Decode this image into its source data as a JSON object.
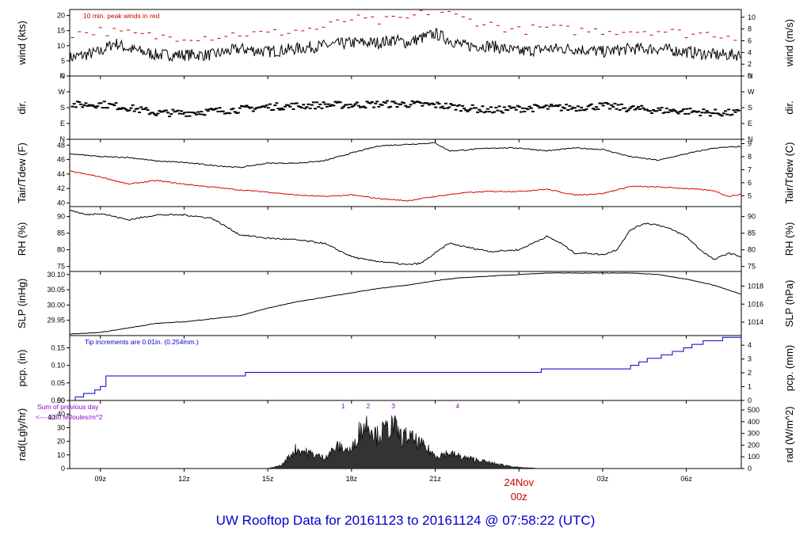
{
  "title": "UW Rooftop Data for 20161123  to  20161124 @ 07:58:22  (UTC)",
  "x_axis": {
    "ticks": [
      "09z",
      "12z",
      "15z",
      "18z",
      "21z",
      "03z",
      "06z"
    ],
    "tick_hours": [
      9,
      12,
      15,
      18,
      21,
      27,
      30
    ],
    "date_label": "24Nov",
    "date_sublabel": "00z",
    "date_hour": 24,
    "range_hours": [
      7.9,
      31.97
    ],
    "date_color": "#cc0000"
  },
  "chart_data": [
    {
      "type": "line",
      "id": "wind",
      "ylabel": "wind (kts)",
      "y2label": "wind (m/s)",
      "ylim": [
        0,
        22
      ],
      "yticks": [
        0,
        5,
        10,
        15,
        20
      ],
      "y2ticks": [
        "0",
        "2",
        "4",
        "6",
        "8",
        "10"
      ],
      "y2ticks_values": [
        0,
        3.89,
        7.78,
        11.66,
        15.55,
        19.44
      ],
      "annotation": "10 min. peak winds in red",
      "annotation_color": "#cc0000",
      "series": [
        {
          "color": "#000000",
          "x": [
            7.9,
            9,
            9.5,
            10,
            11,
            12,
            13,
            14,
            15,
            16,
            17,
            18,
            19,
            19.5,
            20,
            21,
            21.5,
            22,
            23,
            24,
            25,
            26,
            27,
            28,
            29,
            30,
            31,
            31.97
          ],
          "y": [
            6,
            8,
            11,
            9,
            7,
            7,
            7,
            9,
            8,
            9,
            10,
            11,
            11,
            12,
            11,
            14,
            12,
            10,
            10,
            8,
            9,
            9,
            8,
            9,
            9,
            8,
            7,
            7
          ]
        },
        {
          "color": "#cc0000",
          "style": "dash",
          "x": [
            8,
            9,
            10,
            11,
            12,
            13,
            14,
            15,
            16,
            17,
            18,
            19,
            20,
            21,
            22,
            23,
            24,
            25,
            26,
            27,
            28,
            29,
            30,
            31,
            31.9
          ],
          "y": [
            14,
            15,
            14,
            13,
            13,
            13,
            14,
            14,
            15,
            16,
            19,
            18,
            19,
            22,
            19,
            17,
            15,
            16,
            15,
            15,
            15,
            15,
            14,
            14,
            13
          ]
        }
      ]
    },
    {
      "type": "scatter",
      "id": "dir",
      "ylabel": "dir.",
      "y2label": "dir.",
      "yticks": [
        "N",
        "W",
        "S",
        "E",
        "N"
      ],
      "ytick_values": [
        360,
        270,
        180,
        90,
        0
      ],
      "y2ticks": [
        "N",
        "W",
        "S",
        "E",
        "N"
      ],
      "ylim": [
        0,
        360
      ],
      "series": [
        {
          "color": "#000000",
          "x": [
            8,
            9,
            10,
            11,
            12,
            13,
            14,
            15,
            16,
            17,
            18,
            19,
            20,
            21,
            22,
            23,
            24,
            25,
            26,
            27,
            28,
            29,
            30,
            31,
            31.9
          ],
          "y": [
            195,
            200,
            180,
            150,
            150,
            160,
            170,
            185,
            190,
            195,
            195,
            200,
            200,
            195,
            180,
            165,
            175,
            180,
            180,
            190,
            175,
            165,
            160,
            150,
            150
          ]
        }
      ]
    },
    {
      "type": "line",
      "id": "temp",
      "ylabel": "Tair/Tdew (F)",
      "y2label": "Tair/Tdew (C)",
      "ylim": [
        39.5,
        48.8
      ],
      "yticks": [
        40,
        42,
        44,
        46,
        48
      ],
      "y2ticks": [
        "5",
        "6",
        "7",
        "8",
        "9"
      ],
      "y2ticks_values": [
        41,
        42.8,
        44.6,
        46.4,
        48.2
      ],
      "series": [
        {
          "name": "Tair",
          "color": "#000000",
          "x": [
            7.9,
            9,
            10,
            11,
            12,
            13,
            14,
            15,
            16,
            17,
            18,
            19,
            20,
            21,
            21.5,
            22,
            23,
            24,
            25,
            26,
            27,
            28,
            29,
            30,
            31,
            31.97
          ],
          "y": [
            46.8,
            46.4,
            46.3,
            45.8,
            45.6,
            45.2,
            44.9,
            45.5,
            45.5,
            45.8,
            46.9,
            47.9,
            48.1,
            48.3,
            47.2,
            47.3,
            47.6,
            47.6,
            47.2,
            47.6,
            47.4,
            46.4,
            45.9,
            46.8,
            47.6,
            47.8
          ]
        },
        {
          "name": "Tdew",
          "color": "#dd0000",
          "x": [
            7.9,
            9,
            10,
            11,
            12,
            13,
            14,
            15,
            16,
            17,
            18,
            19,
            20,
            21,
            22,
            23,
            24,
            25,
            26,
            27,
            28,
            29,
            30,
            31,
            31.5,
            31.97
          ],
          "y": [
            44.4,
            43.6,
            42.6,
            43.1,
            42.6,
            42.2,
            41.8,
            41.5,
            41.1,
            40.9,
            41.1,
            40.6,
            40.3,
            40.9,
            41.4,
            41.6,
            41.6,
            41.9,
            41.1,
            41.3,
            42.3,
            42.2,
            42.0,
            41.7,
            40.9,
            41.2
          ]
        }
      ]
    },
    {
      "type": "line",
      "id": "rh",
      "ylabel": "RH (%)",
      "y2label": "RH (%)",
      "ylim": [
        73.5,
        93
      ],
      "yticks": [
        75,
        80,
        85,
        90
      ],
      "y2ticks": [
        "75",
        "80",
        "85",
        "90"
      ],
      "y2ticks_values": [
        75,
        80,
        85,
        90
      ],
      "series": [
        {
          "color": "#000000",
          "x": [
            7.9,
            8.5,
            9,
            10,
            11,
            12,
            13,
            14,
            15,
            16,
            17,
            18,
            18.5,
            19,
            19.5,
            20,
            20.5,
            21,
            21.5,
            22,
            23,
            24,
            25,
            25.5,
            26,
            26.5,
            27,
            27.5,
            28,
            28.5,
            29,
            29.5,
            30,
            30.5,
            31,
            31.5,
            31.97
          ],
          "y": [
            92,
            90.5,
            91,
            89,
            90.5,
            90.5,
            89.5,
            84.5,
            83.5,
            83,
            82,
            78,
            77,
            76.5,
            76,
            75.5,
            76,
            79,
            82,
            81,
            79.5,
            80,
            84,
            82,
            79,
            79,
            78.5,
            80,
            86,
            88,
            87.5,
            86,
            84,
            80,
            77,
            79,
            78
          ]
        }
      ]
    },
    {
      "type": "line",
      "id": "slp",
      "ylabel": "SLP (inHg)",
      "y2label": "SLP (hPa)",
      "ylim": [
        29.9,
        30.11
      ],
      "yticks": [
        29.95,
        30.0,
        30.05,
        30.1
      ],
      "ytick_labels": [
        "29.95",
        "30.00",
        "30.05",
        "30.10"
      ],
      "y2ticks": [
        "1014",
        "1016",
        "1018"
      ],
      "y2ticks_values": [
        29.944,
        30.003,
        30.062
      ],
      "series": [
        {
          "color": "#000000",
          "x": [
            7.9,
            9,
            10,
            11,
            12,
            13,
            14,
            15,
            16,
            17,
            18,
            19,
            20,
            21,
            22,
            23,
            24,
            25,
            26,
            27,
            28,
            29,
            30,
            31,
            31.97
          ],
          "y": [
            29.905,
            29.91,
            29.925,
            29.94,
            29.945,
            29.955,
            29.965,
            29.99,
            30.01,
            30.025,
            30.04,
            30.055,
            30.065,
            30.08,
            30.09,
            30.095,
            30.1,
            30.105,
            30.105,
            30.105,
            30.105,
            30.1,
            30.085,
            30.065,
            30.035
          ]
        }
      ]
    },
    {
      "type": "line",
      "id": "pcp",
      "ylabel": "pcp. (in)",
      "y2label": "pcp. (mm)",
      "ylim": [
        0,
        0.185
      ],
      "yticks": [
        0,
        0.05,
        0.1,
        0.15
      ],
      "ytick_labels": [
        "0.00",
        "0.05",
        "0.10",
        "0.15"
      ],
      "y2ticks": [
        "0",
        "1",
        "2",
        "3",
        "4"
      ],
      "y2ticks_values": [
        0,
        0.03937,
        0.07874,
        0.11811,
        0.15748
      ],
      "annotation": "Tip increments are 0.01in. (0.254mm.)",
      "annotation_color": "#0000cc",
      "series": [
        {
          "color": "#0000cc",
          "style": "step",
          "x": [
            7.9,
            8.1,
            8.4,
            8.8,
            9.0,
            9.2,
            14.2,
            24.8,
            28.0,
            28.3,
            28.6,
            29.1,
            29.5,
            29.9,
            30.2,
            30.6,
            31.3,
            31.97
          ],
          "y": [
            0.0,
            0.01,
            0.02,
            0.03,
            0.04,
            0.07,
            0.08,
            0.09,
            0.1,
            0.11,
            0.12,
            0.13,
            0.14,
            0.15,
            0.16,
            0.17,
            0.18,
            0.18
          ]
        }
      ]
    },
    {
      "type": "area",
      "id": "rad",
      "ylabel": "rad(Lgly/hr)",
      "y2label": "rad (W/m^2)",
      "ylim": [
        0,
        50
      ],
      "yticks": [
        0,
        10,
        20,
        30,
        40,
        50
      ],
      "y2ticks": [
        "0",
        "100",
        "200",
        "300",
        "400",
        "500"
      ],
      "y2ticks_values": [
        0,
        8.6,
        17.2,
        25.8,
        34.4,
        43.0
      ],
      "annotation": "Sum of previous day",
      "annotation2": "<--- 1.80 MJoules/m^2",
      "annotation_value": "40",
      "annotation_color": "#9900cc",
      "markers": [
        "1",
        "2",
        "3",
        "4"
      ],
      "marker_hours": [
        17.7,
        18.6,
        19.5,
        21.8
      ],
      "series": [
        {
          "color": "#000000",
          "x": [
            15,
            15.5,
            16,
            16.5,
            17,
            17.5,
            18,
            18.3,
            18.6,
            18.9,
            19.2,
            19.5,
            19.8,
            20,
            20.5,
            21,
            21.5,
            22,
            22.5,
            23,
            23.5,
            24,
            24.8
          ],
          "y": [
            0,
            3,
            18,
            14,
            10,
            20,
            16,
            36,
            42,
            30,
            35,
            40,
            28,
            30,
            22,
            12,
            14,
            10,
            8,
            5,
            3,
            1,
            0
          ]
        }
      ]
    }
  ]
}
